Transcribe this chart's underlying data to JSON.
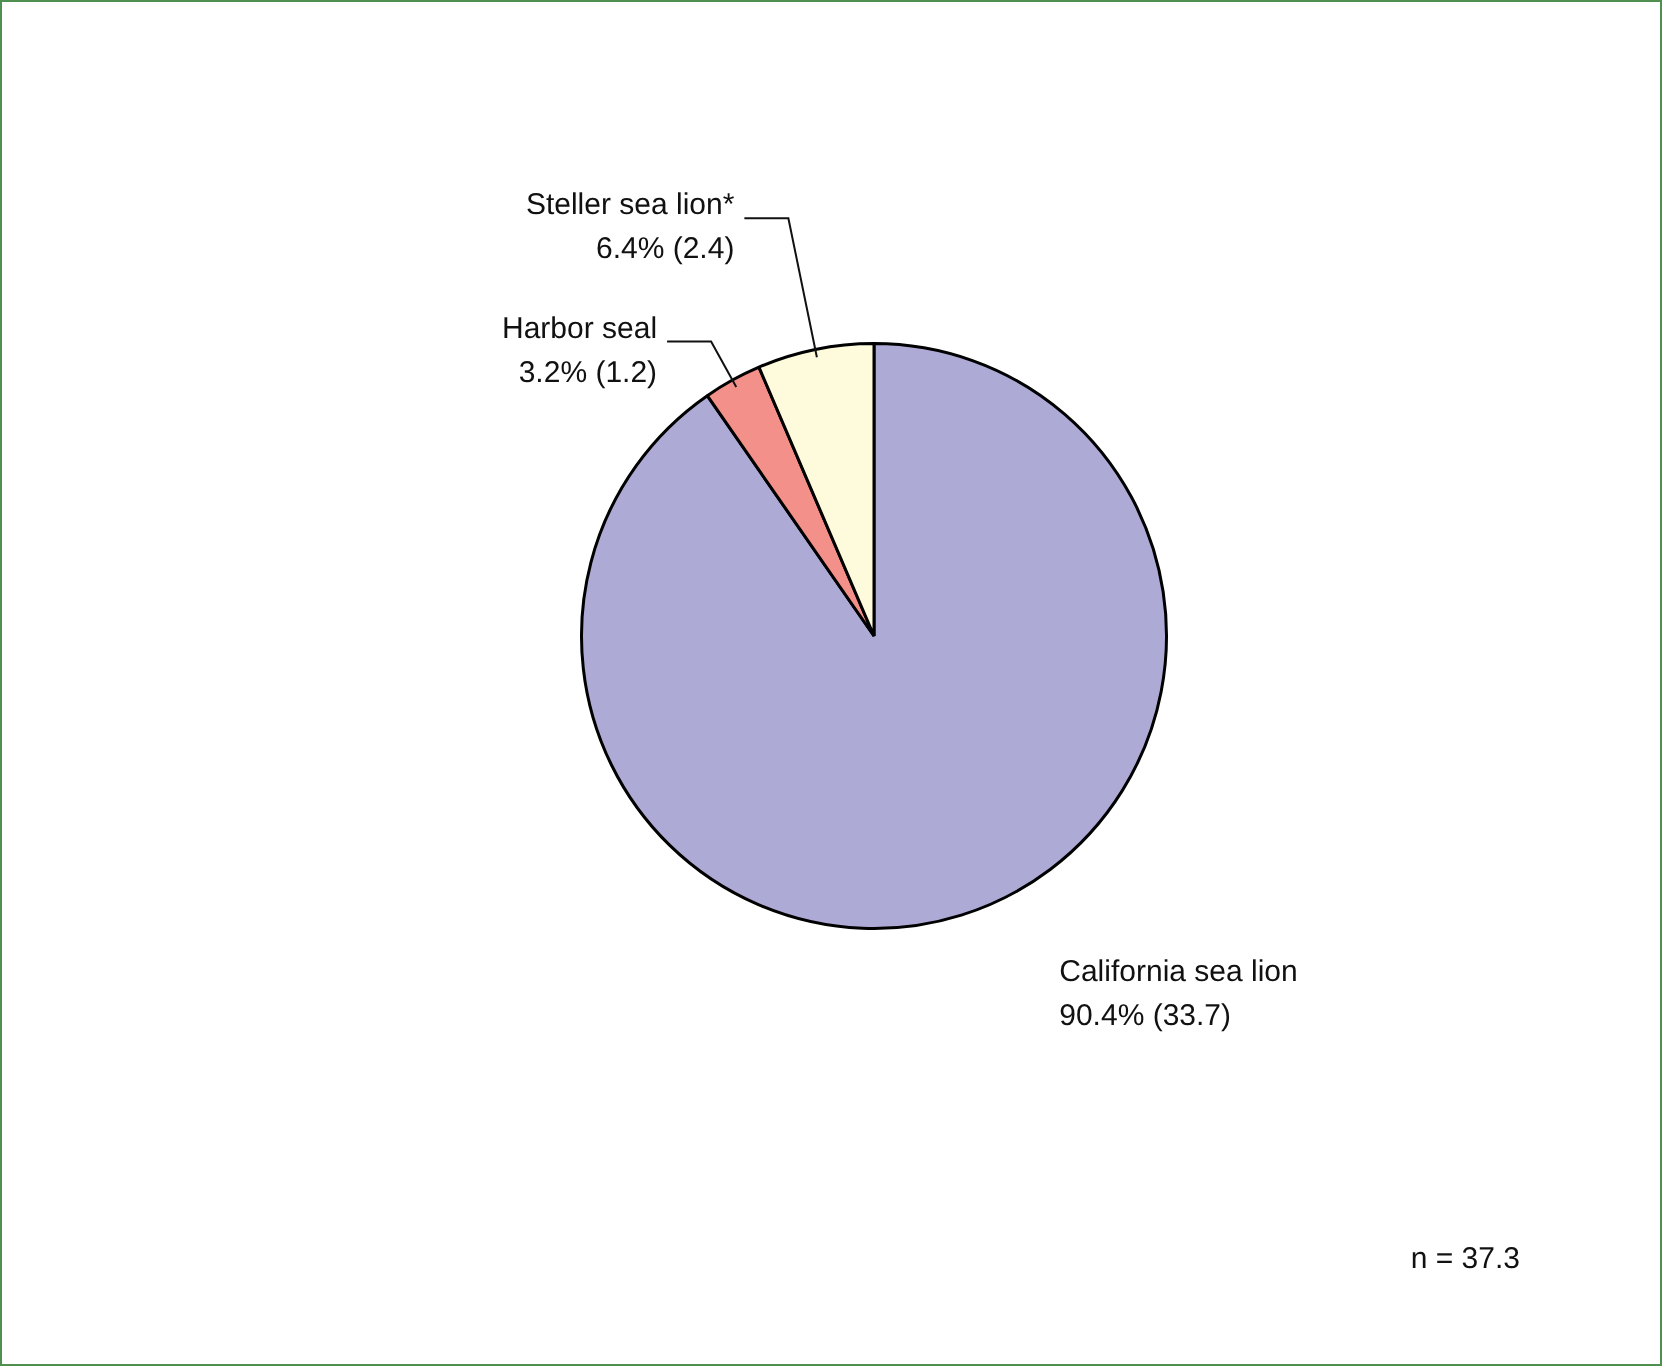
{
  "chart_data": {
    "type": "pie",
    "categories": [
      "California sea lion",
      "Harbor seal",
      "Steller sea lion*"
    ],
    "values": [
      33.7,
      1.2,
      2.4
    ],
    "colors": [
      "#aeaad6",
      "#f4908a",
      "#fefbdc"
    ],
    "value_labels": [
      "90.4% (33.7)",
      "3.2% (1.2)",
      "6.4% (2.4)"
    ],
    "annotations": [
      "n = 37.3"
    ],
    "legend": false
  }
}
